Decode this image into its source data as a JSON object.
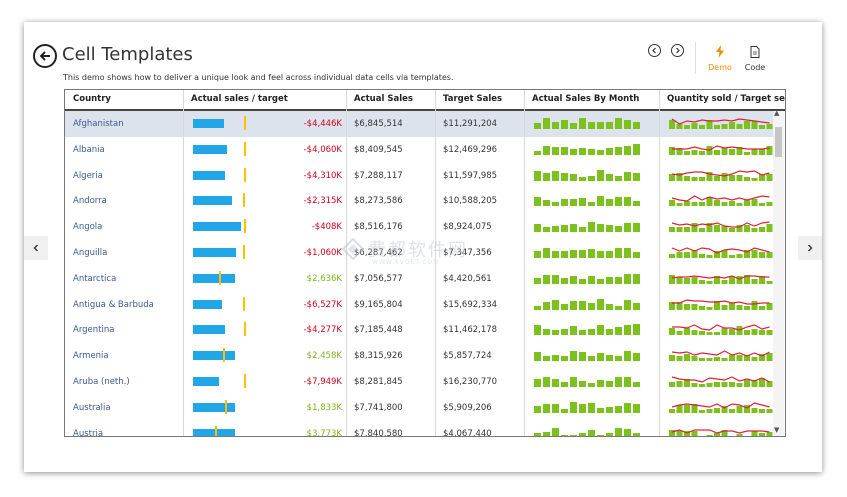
{
  "header": {
    "title": "Cell Templates",
    "description": "This demo shows how to deliver a unique look and feel across individual data cells via templates."
  },
  "toolbar": {
    "demo_label": "Demo",
    "code_label": "Code",
    "accent_color": "#f08a00"
  },
  "watermark": {
    "text": "费都软件网",
    "subtext": "WWW.EVGET.COM"
  },
  "table": {
    "columns": [
      "Country",
      "Actual sales / target",
      "Actual Sales",
      "Target Sales",
      "Actual Sales By Month",
      "Quantity sold / Target sell"
    ],
    "selected_row": 0,
    "rows": [
      {
        "country": "Afghanistan",
        "diff": "-$4,446K",
        "actual": "$6,845,514",
        "target": "$11,291,204",
        "ratio": 0.61
      },
      {
        "country": "Albania",
        "diff": "-$4,060K",
        "actual": "$8,409,545",
        "target": "$12,469,296",
        "ratio": 0.67
      },
      {
        "country": "Algeria",
        "diff": "-$4,310K",
        "actual": "$7,288,117",
        "target": "$11,597,985",
        "ratio": 0.63
      },
      {
        "country": "Andorra",
        "diff": "-$2,315K",
        "actual": "$8,273,586",
        "target": "$10,588,205",
        "ratio": 0.78
      },
      {
        "country": "Angola",
        "diff": "-$408K",
        "actual": "$8,516,176",
        "target": "$8,924,075",
        "ratio": 0.95
      },
      {
        "country": "Anguilla",
        "diff": "-$1,060K",
        "actual": "$6,287,462",
        "target": "$7,347,356",
        "ratio": 0.86
      },
      {
        "country": "Antarctica",
        "diff": "$2,636K",
        "actual": "$7,056,577",
        "target": "$4,420,561",
        "ratio": 1.6
      },
      {
        "country": "Antigua & Barbuda",
        "diff": "-$6,527K",
        "actual": "$9,165,804",
        "target": "$15,692,334",
        "ratio": 0.58
      },
      {
        "country": "Argentina",
        "diff": "-$4,277K",
        "actual": "$7,185,448",
        "target": "$11,462,178",
        "ratio": 0.63
      },
      {
        "country": "Armenia",
        "diff": "$2,458K",
        "actual": "$8,315,926",
        "target": "$5,857,724",
        "ratio": 1.42
      },
      {
        "country": "Aruba (neth.)",
        "diff": "-$7,949K",
        "actual": "$8,281,845",
        "target": "$16,230,770",
        "ratio": 0.51
      },
      {
        "country": "Australia",
        "diff": "$1,833K",
        "actual": "$7,741,800",
        "target": "$5,909,206",
        "ratio": 1.31
      },
      {
        "country": "Austria",
        "diff": "$3,773K",
        "actual": "$7,840,580",
        "target": "$4,067,440",
        "ratio": 1.93
      }
    ]
  },
  "colors": {
    "bar": "#21a6e8",
    "target_marker": "#ffc000",
    "negative": "#d0021b",
    "positive": "#7cb51e",
    "month_bars": "#7cc11e",
    "quantity_line": "#e0203a"
  }
}
